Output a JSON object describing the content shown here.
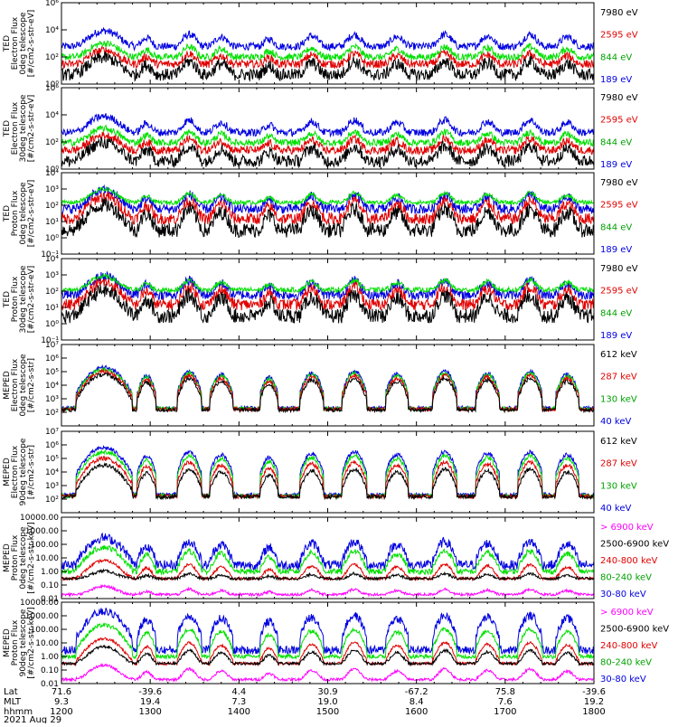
{
  "colors": {
    "black": "#000000",
    "red": "#e00000",
    "green": "#00e000",
    "blue": "#0000e0",
    "magenta": "#ff00ff"
  },
  "chart_data": [
    {
      "type": "line",
      "ylabel": [
        "TED",
        "Electron Flux",
        "0deg telescope",
        "[#/cm2-s-str-eV]"
      ],
      "yscale": "log",
      "ylim": [
        1,
        1000000
      ],
      "yticks": [
        {
          "v": 1,
          "t": "10⁰"
        },
        {
          "v": 100,
          "t": "10²"
        },
        {
          "v": 10000,
          "t": "10⁴"
        },
        {
          "v": 1000000,
          "t": "10⁶"
        }
      ],
      "legend": [
        {
          "label": "7980 eV",
          "color": "#000000"
        },
        {
          "label": "2595 eV",
          "color": "#e00000"
        },
        {
          "label": "844 eV",
          "color": "#00a000"
        },
        {
          "label": "189 eV",
          "color": "#0000e0"
        }
      ],
      "series": [
        {
          "color": "#0000e0",
          "base": 600,
          "mult": 1.0,
          "peak": 3000,
          "noise": 0.55
        },
        {
          "color": "#00e000",
          "base": 100,
          "mult": 0.4,
          "peak": 600,
          "noise": 0.5
        },
        {
          "color": "#e00000",
          "base": 30,
          "mult": 0.15,
          "peak": 250,
          "noise": 0.6
        },
        {
          "color": "#000000",
          "base": 5,
          "mult": 0.05,
          "peak": 80,
          "noise": 0.9
        }
      ]
    },
    {
      "type": "line",
      "ylabel": [
        "TED",
        "Electron Flux",
        "30deg telescope",
        "[#/cm2-s-str-eV]"
      ],
      "yscale": "log",
      "ylim": [
        1,
        1000000
      ],
      "yticks": [
        {
          "v": 1,
          "t": "10⁰"
        },
        {
          "v": 100,
          "t": "10²"
        },
        {
          "v": 10000,
          "t": "10⁴"
        },
        {
          "v": 1000000,
          "t": "10⁶"
        }
      ],
      "legend": [
        {
          "label": "7980 eV",
          "color": "#000000"
        },
        {
          "label": "2595 eV",
          "color": "#e00000"
        },
        {
          "label": "844 eV",
          "color": "#00a000"
        },
        {
          "label": "189 eV",
          "color": "#0000e0"
        }
      ],
      "series": [
        {
          "color": "#0000e0",
          "base": 500,
          "mult": 1.0,
          "peak": 3000,
          "noise": 0.55
        },
        {
          "color": "#00e000",
          "base": 90,
          "mult": 0.4,
          "peak": 600,
          "noise": 0.5
        },
        {
          "color": "#e00000",
          "base": 25,
          "mult": 0.15,
          "peak": 250,
          "noise": 0.6
        },
        {
          "color": "#000000",
          "base": 4,
          "mult": 0.05,
          "peak": 80,
          "noise": 0.9
        }
      ]
    },
    {
      "type": "line",
      "ylabel": [
        "TED",
        "Proton Flux",
        "0deg telescope",
        "[#/cm2-s-str-eV]"
      ],
      "yscale": "log",
      "ylim": [
        0.1,
        10000
      ],
      "yticks": [
        {
          "v": 0.1,
          "t": "10⁻¹"
        },
        {
          "v": 1,
          "t": "10⁰"
        },
        {
          "v": 10,
          "t": "10¹"
        },
        {
          "v": 100,
          "t": "10²"
        },
        {
          "v": 1000,
          "t": "10³"
        },
        {
          "v": 10000,
          "t": "10⁴"
        }
      ],
      "legend": [
        {
          "label": "7980 eV",
          "color": "#000000"
        },
        {
          "label": "2595 eV",
          "color": "#e00000"
        },
        {
          "label": "844 eV",
          "color": "#00a000"
        },
        {
          "label": "189 eV",
          "color": "#0000e0"
        }
      ],
      "series": [
        {
          "color": "#0000e0",
          "base": 60,
          "mult": 0.3,
          "peak": 600,
          "noise": 0.6
        },
        {
          "color": "#00e000",
          "base": 150,
          "mult": 0.35,
          "peak": 400,
          "noise": 0.25
        },
        {
          "color": "#e00000",
          "base": 15,
          "mult": 0.2,
          "peak": 300,
          "noise": 0.7
        },
        {
          "color": "#000000",
          "base": 3,
          "mult": 0.08,
          "peak": 100,
          "noise": 0.9
        }
      ]
    },
    {
      "type": "line",
      "ylabel": [
        "TED",
        "Proton Flux",
        "30deg telescope",
        "[#/cm2-s-str-eV]"
      ],
      "yscale": "log",
      "ylim": [
        0.1,
        10000
      ],
      "yticks": [
        {
          "v": 0.1,
          "t": "10⁻¹"
        },
        {
          "v": 1,
          "t": "10⁰"
        },
        {
          "v": 10,
          "t": "10¹"
        },
        {
          "v": 100,
          "t": "10²"
        },
        {
          "v": 1000,
          "t": "10³"
        },
        {
          "v": 10000,
          "t": "10⁴"
        }
      ],
      "legend": [
        {
          "label": "7980 eV",
          "color": "#000000"
        },
        {
          "label": "2595 eV",
          "color": "#e00000"
        },
        {
          "label": "844 eV",
          "color": "#00a000"
        },
        {
          "label": "189 eV",
          "color": "#0000e0"
        }
      ],
      "series": [
        {
          "color": "#0000e0",
          "base": 60,
          "mult": 0.3,
          "peak": 600,
          "noise": 0.6
        },
        {
          "color": "#00e000",
          "base": 120,
          "mult": 0.3,
          "peak": 400,
          "noise": 0.3
        },
        {
          "color": "#e00000",
          "base": 15,
          "mult": 0.2,
          "peak": 300,
          "noise": 0.7
        },
        {
          "color": "#000000",
          "base": 3,
          "mult": 0.08,
          "peak": 100,
          "noise": 0.9
        }
      ]
    },
    {
      "type": "line",
      "ylabel": [
        "MEPED",
        "Electron Flux",
        "0deg telescope",
        "[#/cm2-s-str]"
      ],
      "yscale": "log",
      "ylim": [
        10,
        10000000
      ],
      "yticks": [
        {
          "v": 100,
          "t": "10²"
        },
        {
          "v": 1000,
          "t": "10³"
        },
        {
          "v": 10000,
          "t": "10⁴"
        },
        {
          "v": 100000,
          "t": "10⁵"
        },
        {
          "v": 1000000,
          "t": "10⁶"
        },
        {
          "v": 10000000,
          "t": "10⁷"
        }
      ],
      "legend": [
        {
          "label": "612 keV",
          "color": "#000000"
        },
        {
          "label": "287 keV",
          "color": "#e00000"
        },
        {
          "label": "130 keV",
          "color": "#00a000"
        },
        {
          "label": "40 keV",
          "color": "#0000e0"
        }
      ],
      "series": [
        {
          "color": "#0000e0",
          "base": 200,
          "mult": 2.0,
          "peak": 200000,
          "noise": 0.3
        },
        {
          "color": "#00e000",
          "base": 180,
          "mult": 1.5,
          "peak": 150000,
          "noise": 0.3
        },
        {
          "color": "#e00000",
          "base": 170,
          "mult": 1.0,
          "peak": 100000,
          "noise": 0.3
        },
        {
          "color": "#000000",
          "base": 150,
          "mult": 0.7,
          "peak": 60000,
          "noise": 0.3
        }
      ]
    },
    {
      "type": "line",
      "ylabel": [
        "MEPED",
        "Electron Flux",
        "90deg telescope",
        "[#/cm2-s-str]"
      ],
      "yscale": "log",
      "ylim": [
        10,
        10000000
      ],
      "yticks": [
        {
          "v": 100,
          "t": "10²"
        },
        {
          "v": 1000,
          "t": "10³"
        },
        {
          "v": 10000,
          "t": "10⁴"
        },
        {
          "v": 100000,
          "t": "10⁵"
        },
        {
          "v": 1000000,
          "t": "10⁶"
        },
        {
          "v": 10000000,
          "t": "10⁷"
        }
      ],
      "legend": [
        {
          "label": "612 keV",
          "color": "#000000"
        },
        {
          "label": "287 keV",
          "color": "#e00000"
        },
        {
          "label": "130 keV",
          "color": "#00a000"
        },
        {
          "label": "40 keV",
          "color": "#0000e0"
        }
      ],
      "series": [
        {
          "color": "#0000e0",
          "base": 200,
          "mult": 3.0,
          "peak": 600000,
          "noise": 0.3
        },
        {
          "color": "#00e000",
          "base": 170,
          "mult": 2.0,
          "peak": 300000,
          "noise": 0.3
        },
        {
          "color": "#e00000",
          "base": 160,
          "mult": 1.2,
          "peak": 100000,
          "noise": 0.3
        },
        {
          "color": "#000000",
          "base": 150,
          "mult": 0.8,
          "peak": 30000,
          "noise": 0.3
        }
      ]
    },
    {
      "type": "line",
      "ylabel": [
        "MEPED",
        "Proton Flux",
        "0deg telescope",
        "[#/cm2-s-str-keV]"
      ],
      "yscale": "log",
      "ylim": [
        0.01,
        10000
      ],
      "yticks": [
        {
          "v": 0.01,
          "t": "0.01"
        },
        {
          "v": 0.1,
          "t": "0.10"
        },
        {
          "v": 1,
          "t": "1.00"
        },
        {
          "v": 10,
          "t": "10.00"
        },
        {
          "v": 100,
          "t": "100.00"
        },
        {
          "v": 1000,
          "t": "1000.00"
        },
        {
          "v": 10000,
          "t": "10000.00"
        }
      ],
      "legend": [
        {
          "label": "> 6900 keV",
          "color": "#ff00ff"
        },
        {
          "label": "2500-6900 keV",
          "color": "#000000"
        },
        {
          "label": "240-800 keV",
          "color": "#e00000"
        },
        {
          "label": "80-240 keV",
          "color": "#00a000"
        },
        {
          "label": "30-80 keV",
          "color": "#0000e0"
        }
      ],
      "series": [
        {
          "color": "#0000e0",
          "base": 3,
          "mult": 0.05,
          "peak": 300,
          "noise": 0.7
        },
        {
          "color": "#00e000",
          "base": 1,
          "mult": 0.02,
          "peak": 60,
          "noise": 0.4
        },
        {
          "color": "#e00000",
          "base": 0.3,
          "mult": 0.0,
          "peak": 6,
          "noise": 0.2
        },
        {
          "color": "#000000",
          "base": 0.3,
          "mult": 0.0,
          "peak": 0.8,
          "noise": 0.2
        },
        {
          "color": "#ff00ff",
          "base": 0.02,
          "mult": 0.0,
          "peak": 0.06,
          "noise": 0.2
        }
      ]
    },
    {
      "type": "line",
      "ylabel": [
        "MEPED",
        "Proton Flux",
        "90deg telescope",
        "[#/cm2-s-str-keV]"
      ],
      "yscale": "log",
      "ylim": [
        0.01,
        10000
      ],
      "yticks": [
        {
          "v": 0.01,
          "t": "0.01"
        },
        {
          "v": 0.1,
          "t": "0.10"
        },
        {
          "v": 1,
          "t": "1.00"
        },
        {
          "v": 10,
          "t": "10.00"
        },
        {
          "v": 100,
          "t": "100.00"
        },
        {
          "v": 1000,
          "t": "1000.00"
        },
        {
          "v": 10000,
          "t": "10000.00"
        }
      ],
      "legend": [
        {
          "label": "> 6900 keV",
          "color": "#ff00ff"
        },
        {
          "label": "2500-6900 keV",
          "color": "#000000"
        },
        {
          "label": "240-800 keV",
          "color": "#e00000"
        },
        {
          "label": "80-240 keV",
          "color": "#00a000"
        },
        {
          "label": "30-80 keV",
          "color": "#0000e0"
        }
      ],
      "series": [
        {
          "color": "#0000e0",
          "base": 3,
          "mult": 0.05,
          "peak": 2000,
          "noise": 0.6
        },
        {
          "color": "#00e000",
          "base": 1,
          "mult": 0.02,
          "peak": 200,
          "noise": 0.3
        },
        {
          "color": "#e00000",
          "base": 0.3,
          "mult": 0.0,
          "peak": 20,
          "noise": 0.2
        },
        {
          "color": "#000000",
          "base": 0.3,
          "mult": 0.0,
          "peak": 5,
          "noise": 0.2
        },
        {
          "color": "#ff00ff",
          "base": 0.02,
          "mult": 0.0,
          "peak": 0.2,
          "noise": 0.2
        }
      ]
    }
  ],
  "events": [
    {
      "t": 0.08,
      "w": 0.025,
      "amp": 80
    },
    {
      "t": 0.16,
      "w": 0.01,
      "amp": 20
    },
    {
      "t": 0.24,
      "w": 0.012,
      "amp": 40
    },
    {
      "t": 0.3,
      "w": 0.012,
      "amp": 25
    },
    {
      "t": 0.39,
      "w": 0.01,
      "amp": 15
    },
    {
      "t": 0.47,
      "w": 0.012,
      "amp": 30
    },
    {
      "t": 0.55,
      "w": 0.012,
      "amp": 40
    },
    {
      "t": 0.63,
      "w": 0.012,
      "amp": 25
    },
    {
      "t": 0.72,
      "w": 0.012,
      "amp": 40
    },
    {
      "t": 0.8,
      "w": 0.012,
      "amp": 30
    },
    {
      "t": 0.88,
      "w": 0.012,
      "amp": 40
    },
    {
      "t": 0.95,
      "w": 0.012,
      "amp": 25
    }
  ],
  "xaxis": {
    "rows": [
      {
        "name": "Lat",
        "values": [
          "71.6",
          "-39.6",
          "4.4",
          "30.9",
          "-67.2",
          "75.8",
          "-39.6"
        ]
      },
      {
        "name": "MLT",
        "values": [
          "9.3",
          "19.4",
          "7.3",
          "19.0",
          "8.4",
          "7.6",
          "19.2"
        ]
      },
      {
        "name": "hhmm",
        "values": [
          "1200",
          "1300",
          "1400",
          "1500",
          "1600",
          "1700",
          "1800"
        ]
      }
    ],
    "date": "2021 Aug 29"
  }
}
